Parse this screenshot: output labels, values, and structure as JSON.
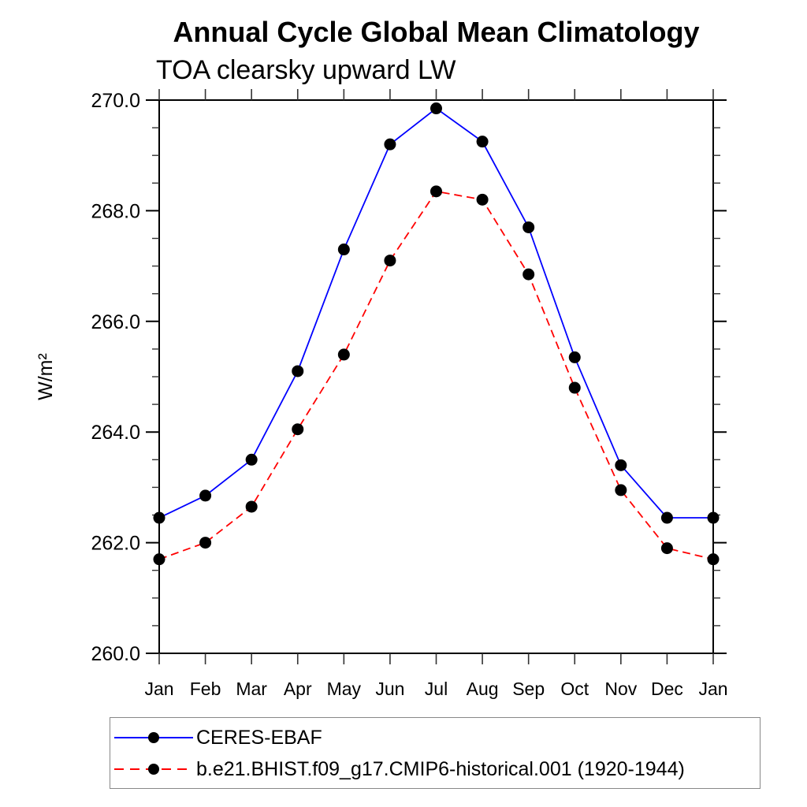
{
  "title": "Annual Cycle Global Mean Climatology",
  "subtitle": "TOA clearsky upward LW",
  "ylabel": "W/m²",
  "colors": {
    "series1": "#0000ff",
    "series2": "#ff0000",
    "marker": "#000000",
    "axis": "#000000",
    "tick": "#333333",
    "legend_border": "#888888"
  },
  "chart_data": {
    "type": "line",
    "categories": [
      "Jan",
      "Feb",
      "Mar",
      "Apr",
      "May",
      "Jun",
      "Jul",
      "Aug",
      "Sep",
      "Oct",
      "Nov",
      "Dec",
      "Jan"
    ],
    "series": [
      {
        "name": "CERES-EBAF",
        "color": "#0000ff",
        "style": "solid",
        "marker": "circle",
        "marker_color": "#000000",
        "values": [
          262.45,
          262.85,
          263.5,
          265.1,
          267.3,
          269.2,
          269.85,
          269.25,
          267.7,
          265.35,
          263.4,
          262.45,
          262.45
        ]
      },
      {
        "name": "b.e21.BHIST.f09_g17.CMIP6-historical.001 (1920-1944)",
        "color": "#ff0000",
        "style": "dashed",
        "marker": "circle",
        "marker_color": "#000000",
        "values": [
          261.7,
          262.0,
          262.65,
          264.05,
          265.4,
          267.1,
          268.35,
          268.2,
          266.85,
          264.8,
          262.95,
          261.9,
          261.7
        ]
      }
    ],
    "title": "Annual Cycle Global Mean Climatology",
    "subtitle": "TOA clearsky upward LW",
    "xlabel": "",
    "ylabel": "W/m²",
    "ylim": [
      260.0,
      270.0
    ],
    "ytick_labels": [
      "260.0",
      "262.0",
      "264.0",
      "266.0",
      "268.0",
      "270.0"
    ],
    "ytick_major": 2.0,
    "ytick_minor": 0.5,
    "grid": false,
    "legend_position": "bottom"
  }
}
